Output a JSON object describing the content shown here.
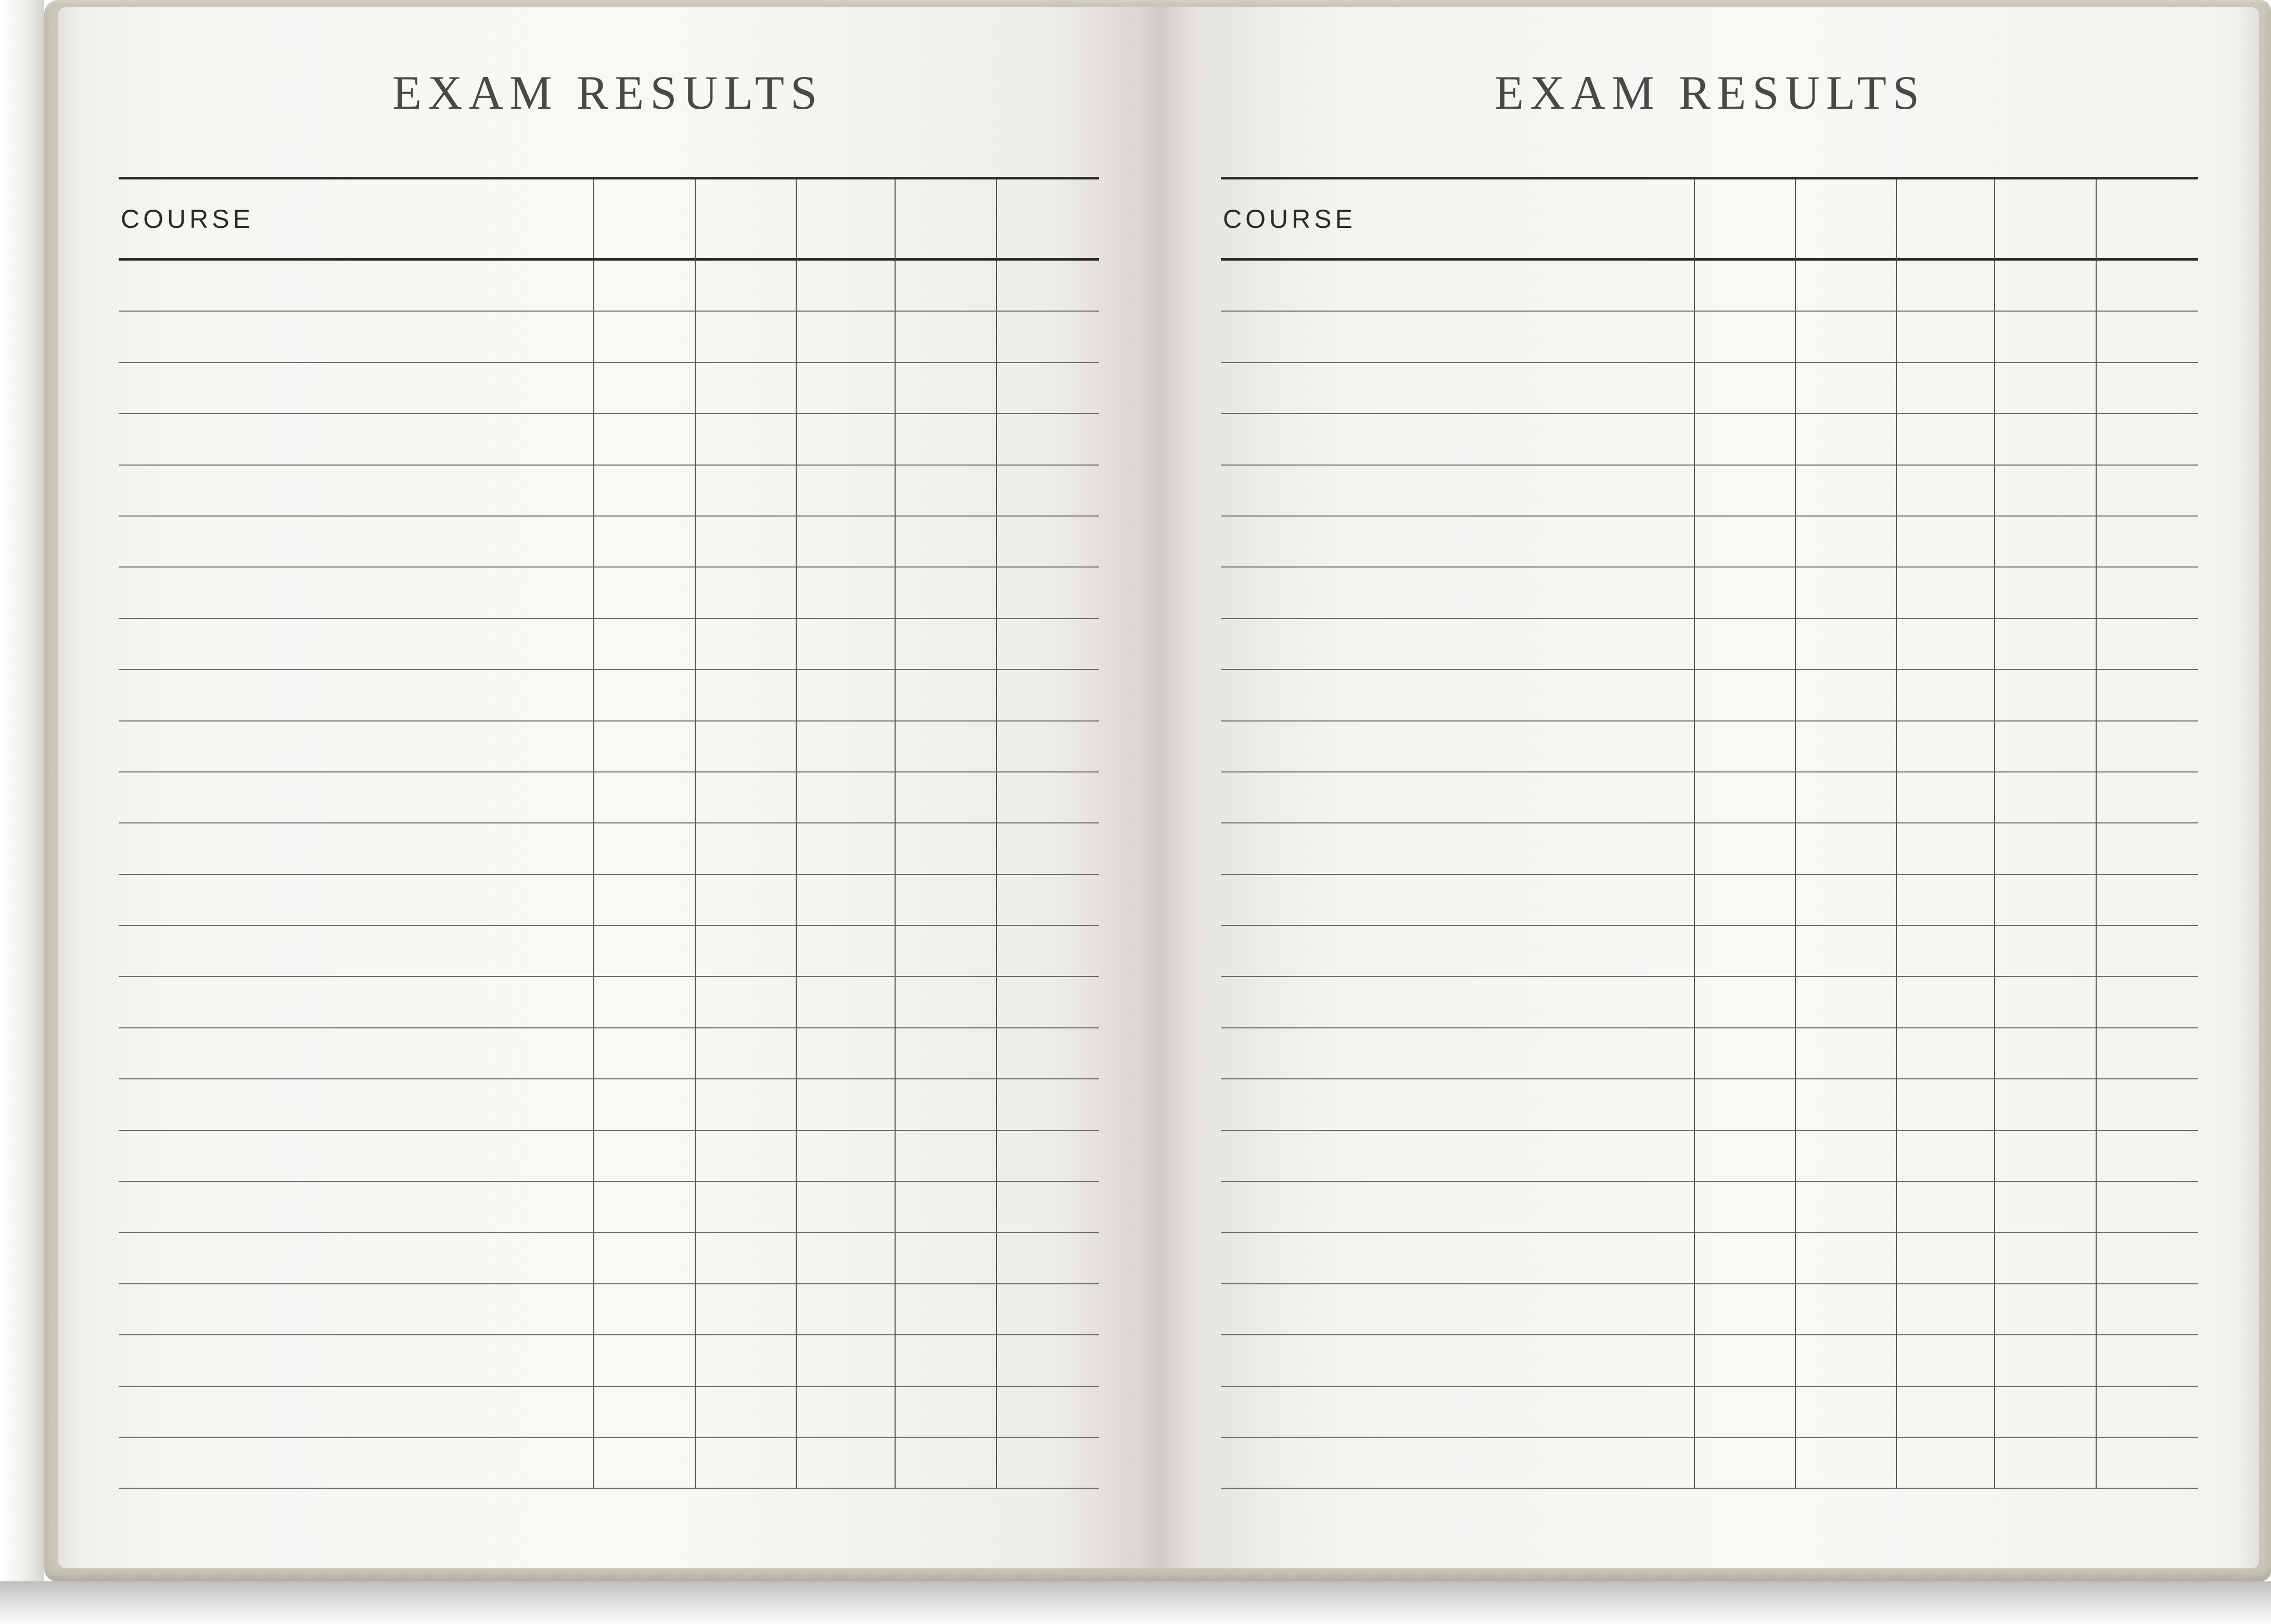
{
  "pages": [
    {
      "id": "left",
      "title": "EXAM RESULTS",
      "table": {
        "header": "COURSE",
        "rows": 24,
        "score_columns": 5
      }
    },
    {
      "id": "right",
      "title": "EXAM RESULTS",
      "table": {
        "header": "COURSE",
        "rows": 24,
        "score_columns": 5
      }
    }
  ],
  "colors": {
    "cover": "#cbc7b9",
    "paper": "#f8f7f4",
    "header_line": "#2d2c29",
    "row_line": "#6e6c68",
    "column_line": "#55534e",
    "title_text": "#494846",
    "header_text": "#2b2a28"
  }
}
